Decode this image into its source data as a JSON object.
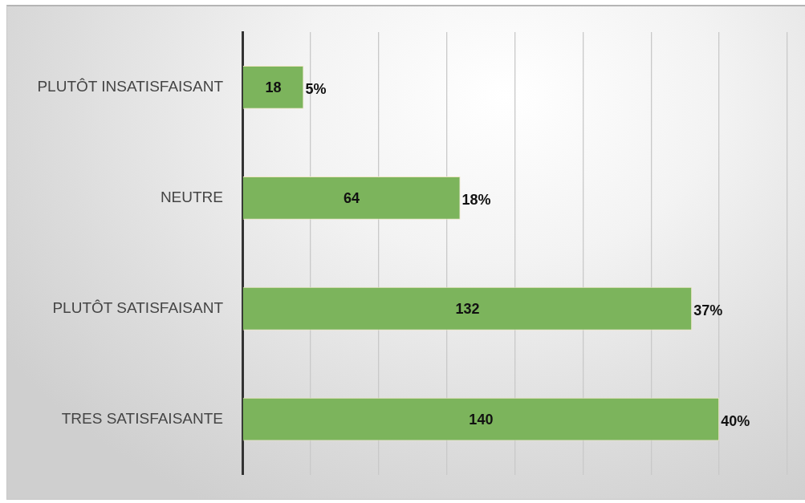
{
  "chart_data": {
    "type": "bar",
    "orientation": "horizontal",
    "categories": [
      "PLUTÔT INSATISFAISANT",
      "NEUTRE",
      "PLUTÔT SATISFAISANT",
      "TRES SATISFAISANTE"
    ],
    "values": [
      18,
      64,
      132,
      140
    ],
    "color": "#7cb45c",
    "xlim": [
      0,
      160
    ],
    "xticks": [
      {
        "value": 0,
        "label": null
      },
      {
        "value": 20,
        "label": null
      },
      {
        "value": 40,
        "label": null
      },
      {
        "value": 60,
        "label": null
      },
      {
        "value": 80,
        "label": null
      },
      {
        "value": 100,
        "label": null
      },
      {
        "value": 120,
        "label": null
      },
      {
        "value": 140,
        "label": null
      },
      {
        "value": 160,
        "label": null
      }
    ],
    "grid": "x",
    "tick_labels": "y",
    "data_labels": true,
    "annotations": [
      {
        "text": "5%",
        "x": 18,
        "y": "PLUTÔT INSATISFAISANT"
      },
      {
        "text": "18%",
        "x": 64,
        "y": "NEUTRE"
      },
      {
        "text": "37%",
        "x": 132,
        "y": "PLUTÔT SATISFAISANT"
      },
      {
        "text": "40%",
        "x": 140,
        "y": "TRES SATISFAISANTE"
      }
    ]
  }
}
